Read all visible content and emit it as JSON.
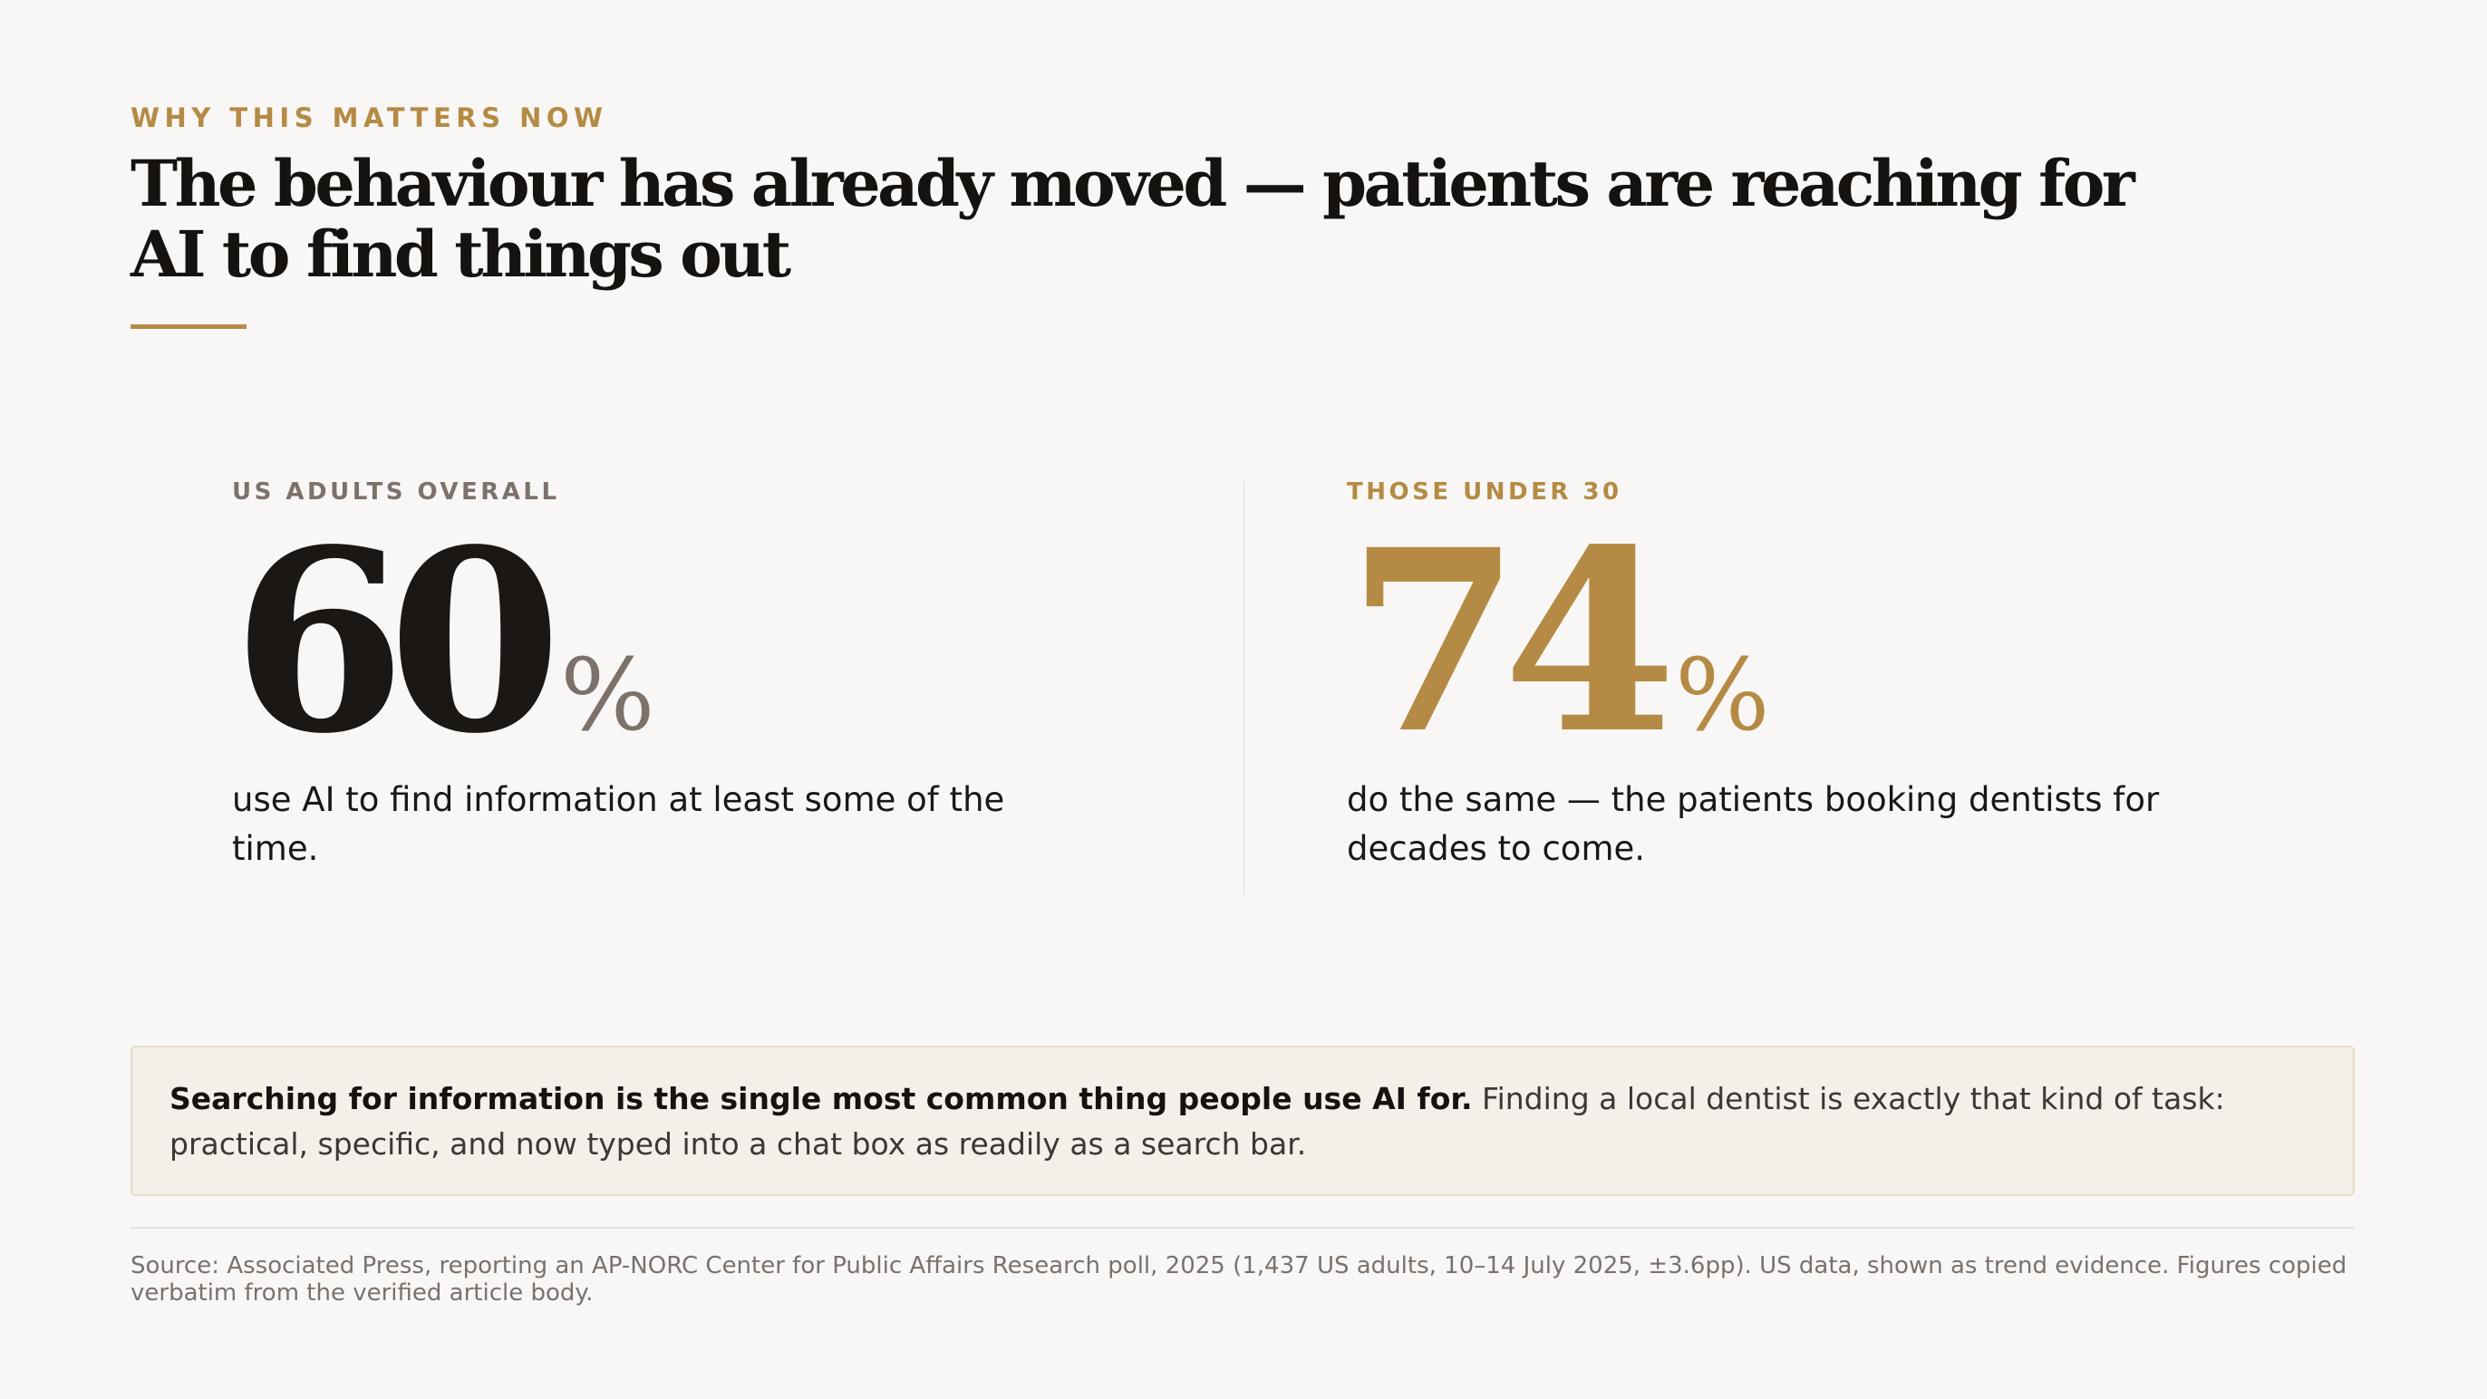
{
  "eyebrow": "WHY THIS MATTERS NOW",
  "headline": "The behaviour has already moved — patients are reaching for AI to find things out",
  "stats": [
    {
      "label": "US ADULTS OVERALL",
      "value": "60",
      "unit": "%",
      "description": "use AI to find information at least some of the time."
    },
    {
      "label": "THOSE UNDER 30",
      "value": "74",
      "unit": "%",
      "description": "do the same — the patients booking dentists for decades to come."
    }
  ],
  "callout": {
    "lead": "Searching for information is the single most common thing people use AI for.",
    "body": " Finding a local dentist is exactly that kind of task: practical, specific, and now typed into a chat box as readily as a search bar."
  },
  "source": "Source: Associated Press, reporting an AP-NORC Center for Public Affairs Research poll, 2025 (1,437 US adults, 10–14 July 2025, ±3.6pp). US data, shown as trend evidence. Figures copied verbatim from the verified article body.",
  "colors": {
    "accent": "#b58a44",
    "text": "#1a1714",
    "muted": "#7d716b",
    "background": "#f8f7f5",
    "callout_background": "#f4efe9"
  }
}
